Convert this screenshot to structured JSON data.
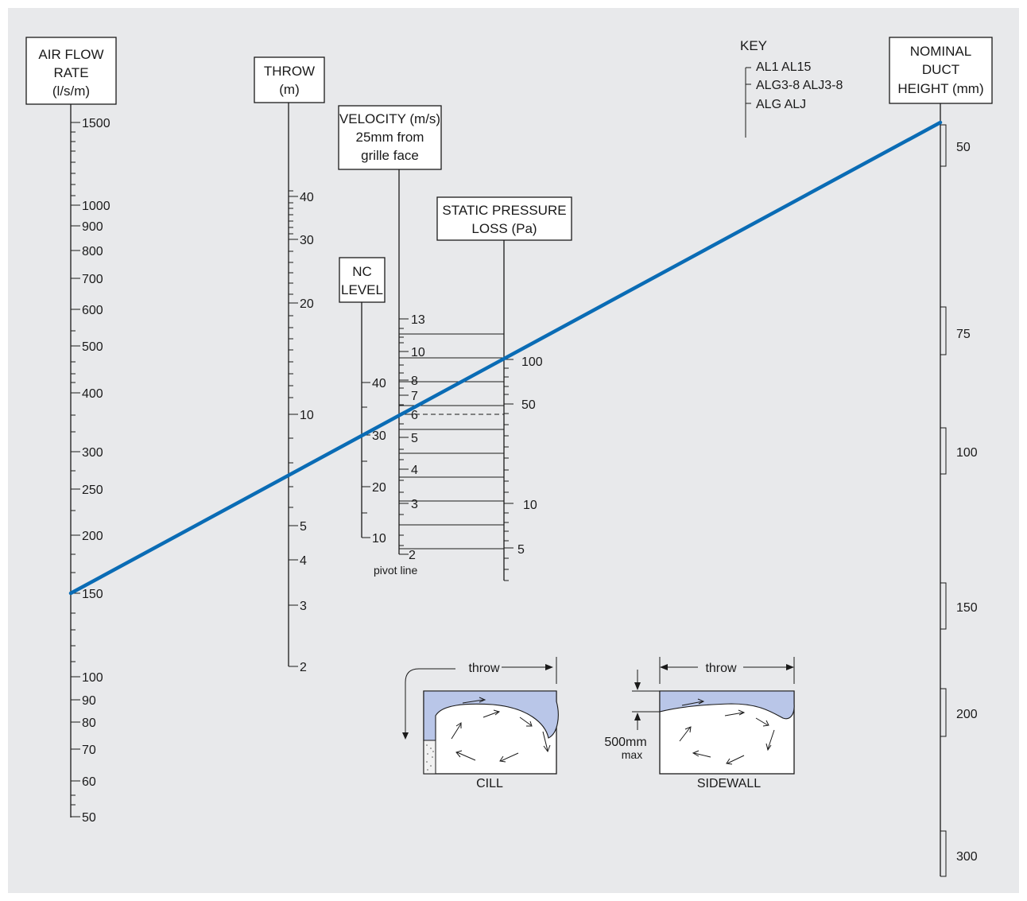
{
  "axes": {
    "airflow": {
      "header": [
        "AIR FLOW",
        "RATE",
        "(l/s/m)"
      ],
      "labels": [
        "1500",
        "1000",
        "900",
        "800",
        "700",
        "600",
        "500",
        "400",
        "300",
        "250",
        "200",
        "150",
        "100",
        "90",
        "80",
        "70",
        "60",
        "50"
      ]
    },
    "throw": {
      "header": [
        "THROW",
        "(m)"
      ],
      "labels": [
        "40",
        "30",
        "20",
        "10",
        "5",
        "4",
        "3",
        "2"
      ]
    },
    "velocity": {
      "header": [
        "VELOCITY (m/s)",
        "25mm from",
        "grille face"
      ],
      "labels": [
        "13",
        "10",
        "8",
        "7",
        "6",
        "5",
        "4",
        "3",
        "2"
      ],
      "pivot_label": "pivot line"
    },
    "nc": {
      "header": [
        "NC",
        "LEVEL"
      ],
      "labels": [
        "40",
        "30",
        "20",
        "10"
      ]
    },
    "pressure": {
      "header": [
        "STATIC PRESSURE",
        "LOSS (Pa)"
      ],
      "labels": [
        "100",
        "50",
        "10",
        "5"
      ]
    },
    "duct": {
      "header": [
        "NOMINAL",
        "DUCT",
        "HEIGHT (mm)"
      ],
      "labels": [
        "50",
        "75",
        "100",
        "150",
        "200",
        "300"
      ]
    }
  },
  "key": {
    "title": "KEY",
    "rows": [
      "AL1  AL15",
      "ALG3-8  ALJ3-8",
      "ALG  ALJ"
    ]
  },
  "diagrams": {
    "cill": {
      "caption": "CILL",
      "throw_label": "throw"
    },
    "sidewall": {
      "caption": "SIDEWALL",
      "throw_label": "throw",
      "max_label": [
        "500mm",
        "max"
      ]
    }
  },
  "colors": {
    "line": "#0a6cb5",
    "jet": "#b9c6e8",
    "panel": "#e8e9eb"
  }
}
